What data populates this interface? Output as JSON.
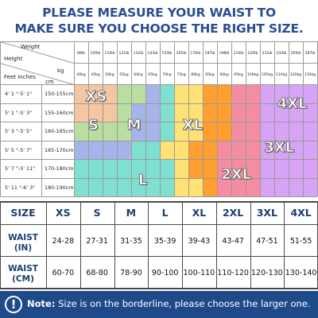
{
  "title": {
    "line1": "PLEASE MEASURE YOUR WAIST TO",
    "line2": "MAKE SURE YOU CHOOSE THE RIGHT SIZE."
  },
  "size_chart": {
    "corner_labels": {
      "weight": "Weight",
      "height": "Height",
      "kg": "kg",
      "feet_inches": "Feet inches",
      "cm": "cm"
    },
    "lb_values": [
      "88lb",
      "100lb",
      "110lb",
      "121lb",
      "132lb",
      "143lb",
      "154lb",
      "165lb",
      "176lb",
      "187lb",
      "198lb",
      "210lb",
      "220lb",
      "231lb",
      "243lb",
      "265lb",
      "287lb"
    ],
    "kg_values": [
      "40kg",
      "45kg",
      "50kg",
      "55kg",
      "60kg",
      "65kg",
      "70kg",
      "75kg",
      "80kg",
      "85kg",
      "90kg",
      "95kg",
      "100kg",
      "105kg",
      "110kg",
      "120kg",
      "130kg"
    ],
    "rows": [
      {
        "feet": "4' 1 \"-5' 1\"",
        "cm": "150-155cm"
      },
      {
        "feet": "5' 1 \"-5' 3\"",
        "cm": "155-160cm"
      },
      {
        "feet": "5' 3 \"-5' 5\"",
        "cm": "160-165cm"
      },
      {
        "feet": "5' 5 \"-5' 7\"",
        "cm": "165-170cm"
      },
      {
        "feet": "5' 7 \"-5' 11\"",
        "cm": "170-180cm"
      },
      {
        "feet": "5' 11 \"-6' 3\"",
        "cm": "180-190cm"
      }
    ],
    "size_grid": [
      [
        "XS",
        "XS",
        "XS",
        "S",
        "S",
        "M",
        "L",
        "XL",
        "XL",
        "2XL",
        "2XL",
        "3XL",
        "3XL",
        "4XL",
        "4XL",
        "4XL",
        "4XL"
      ],
      [
        "XS",
        "XS",
        "XS",
        "S",
        "M",
        "M",
        "L",
        "XL",
        "XL",
        "2XL",
        "2XL",
        "3XL",
        "3XL",
        "4XL",
        "4XL",
        "4XL",
        "4XL"
      ],
      [
        "S",
        "S",
        "S",
        "S",
        "M",
        "M",
        "L",
        "XL",
        "XL",
        "2XL",
        "2XL",
        "3XL",
        "3XL",
        "4XL",
        "4XL",
        "4XL",
        "4XL"
      ],
      [
        "M",
        "M",
        "M",
        "M",
        "L",
        "L",
        "XL",
        "XL",
        "2XL",
        "2XL",
        "3XL",
        "3XL",
        "3XL",
        "4XL",
        "4XL",
        "4XL",
        "4XL"
      ],
      [
        "L",
        "L",
        "L",
        "L",
        "L",
        "L",
        "L",
        "XL",
        "2XL",
        "2XL",
        "3XL",
        "3XL",
        "3XL",
        "4XL",
        "4XL",
        "4XL",
        "4XL"
      ],
      [
        "L",
        "L",
        "L",
        "L",
        "L",
        "L",
        "L",
        "XL",
        "XL",
        "2XL",
        "3XL",
        "3XL",
        "3XL",
        "4XL",
        "4XL",
        "4XL",
        "4XL"
      ]
    ],
    "size_colors": {
      "XS": "#f5c6a2",
      "S": "#b8dfa0",
      "M": "#a6b4ea",
      "L": "#7fe0d2",
      "XL": "#ffe276",
      "2XL": "#ff9f2f",
      "3XL": "#f48da2",
      "4XL": "#d7a3f5"
    },
    "size_labels": {
      "XS": "XS",
      "S": "S",
      "M": "M",
      "L": "L",
      "XL": "XL",
      "2XL": "2XL",
      "3XL": "3XL",
      "4XL": "4XL"
    }
  },
  "waist_table": {
    "size_header": "SIZE",
    "sizes": [
      "XS",
      "S",
      "M",
      "L",
      "XL",
      "2XL",
      "3XL",
      "4XL"
    ],
    "waist_in_label_1": "WAIST",
    "waist_in_label_2": "(IN)",
    "waist_in": [
      "24-28",
      "27-31",
      "31-35",
      "35-39",
      "39-43",
      "43-47",
      "47-51",
      "51-55"
    ],
    "waist_cm_label_1": "WAIST",
    "waist_cm_label_2": "(CM)",
    "waist_cm": [
      "60-70",
      "68-80",
      "78-90",
      "90-100",
      "100-110",
      "110-120",
      "120-130",
      "130-140"
    ]
  },
  "note": {
    "icon": "exclamation-icon",
    "icon_glyph": "!",
    "label": "Note:",
    "text": " Size is on the borderline, please choose the larger one."
  },
  "colors": {
    "title": "#2a4f8f",
    "note_bar": "#1f4a8a",
    "table_header_text": "#1d3d6e"
  }
}
